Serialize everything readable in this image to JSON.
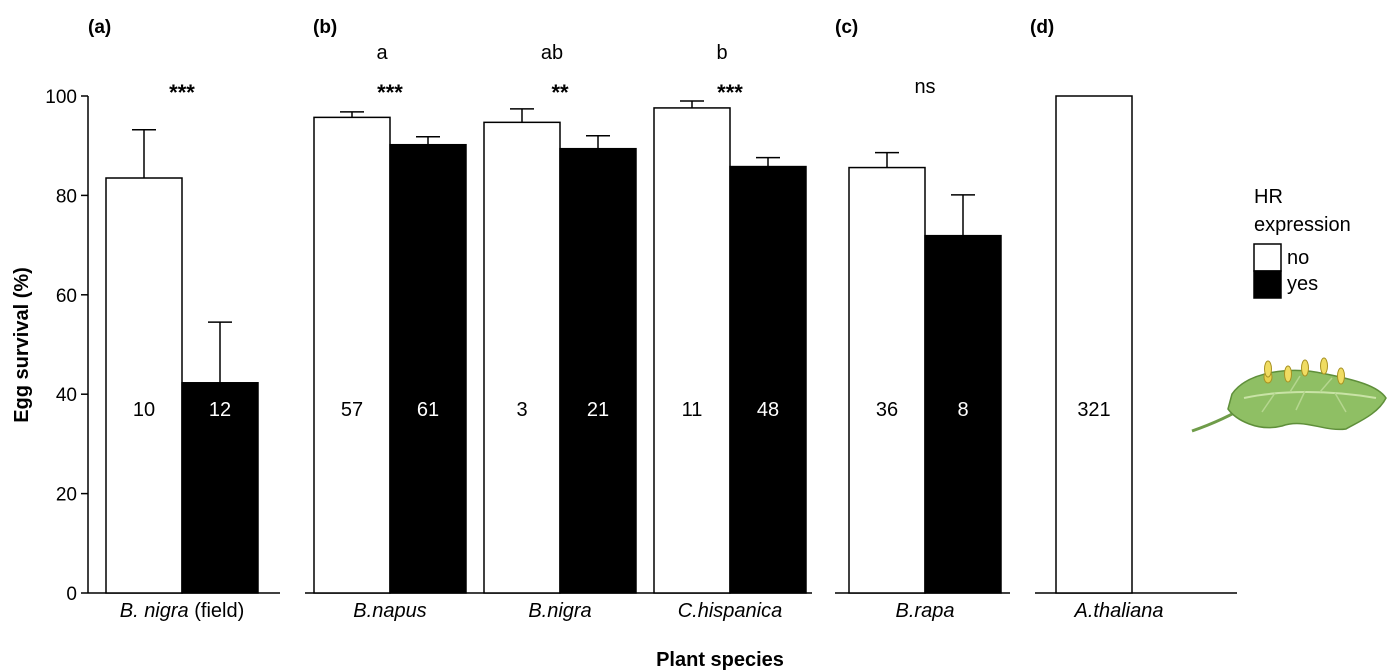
{
  "chart_data": {
    "type": "bar",
    "ylabel": "Egg survival (%)",
    "xlabel": "Plant species",
    "ylim": [
      0,
      100
    ],
    "yticks": [
      "0",
      "20",
      "40",
      "60",
      "80",
      "100"
    ],
    "legend": {
      "title_line1": "HR",
      "title_line2": "expression",
      "placement": "right",
      "entries": [
        {
          "label": "no",
          "color": "#ffffff"
        },
        {
          "label": "yes",
          "color": "#000000"
        }
      ]
    },
    "series": [
      {
        "name": "no",
        "color": "#ffffff"
      },
      {
        "name": "yes",
        "color": "#000000"
      }
    ],
    "panels": [
      {
        "label": "(a)",
        "groups": [
          {
            "category_italic": "B. nigra",
            "category_plain": " (field)",
            "letter": "",
            "sig": "***",
            "bars": [
              {
                "series": "no",
                "value": 83.5,
                "err_low": 72.8,
                "err_high": 93.2,
                "n": "10"
              },
              {
                "series": "yes",
                "value": 42.3,
                "err_low": null,
                "err_high": 54.5,
                "n": "12"
              }
            ]
          }
        ]
      },
      {
        "label": "(b)",
        "groups": [
          {
            "category_italic": "B.napus",
            "category_plain": "",
            "letter": "a",
            "sig": "***",
            "bars": [
              {
                "series": "no",
                "value": 95.7,
                "err_low": 94.3,
                "err_high": 96.8,
                "n": "57"
              },
              {
                "series": "yes",
                "value": 90.2,
                "err_low": null,
                "err_high": 91.8,
                "n": "61"
              }
            ]
          },
          {
            "category_italic": "B.nigra",
            "category_plain": "",
            "letter": "ab",
            "sig": "**",
            "bars": [
              {
                "series": "no",
                "value": 94.7,
                "err_low": 92.0,
                "err_high": 97.4,
                "n": "3"
              },
              {
                "series": "yes",
                "value": 89.4,
                "err_low": null,
                "err_high": 92.0,
                "n": "21"
              }
            ]
          },
          {
            "category_italic": "C.hispanica",
            "category_plain": "",
            "letter": "b",
            "sig": "***",
            "bars": [
              {
                "series": "no",
                "value": 97.6,
                "err_low": 96.2,
                "err_high": 99.0,
                "n": "11"
              },
              {
                "series": "yes",
                "value": 85.8,
                "err_low": null,
                "err_high": 87.6,
                "n": "48"
              }
            ]
          }
        ]
      },
      {
        "label": "(c)",
        "groups": [
          {
            "category_italic": "B.rapa",
            "category_plain": "",
            "letter": "",
            "sig": "ns",
            "bars": [
              {
                "series": "no",
                "value": 85.6,
                "err_low": 82.5,
                "err_high": 88.6,
                "n": "36"
              },
              {
                "series": "yes",
                "value": 71.9,
                "err_low": null,
                "err_high": 80.1,
                "n": "8"
              }
            ]
          }
        ]
      },
      {
        "label": "(d)",
        "groups": [
          {
            "category_italic": "A.thaliana",
            "category_plain": "",
            "letter": "",
            "sig": "",
            "bars": [
              {
                "series": "no",
                "value": 100,
                "err_low": null,
                "err_high": null,
                "n": "321"
              }
            ]
          }
        ]
      }
    ]
  }
}
